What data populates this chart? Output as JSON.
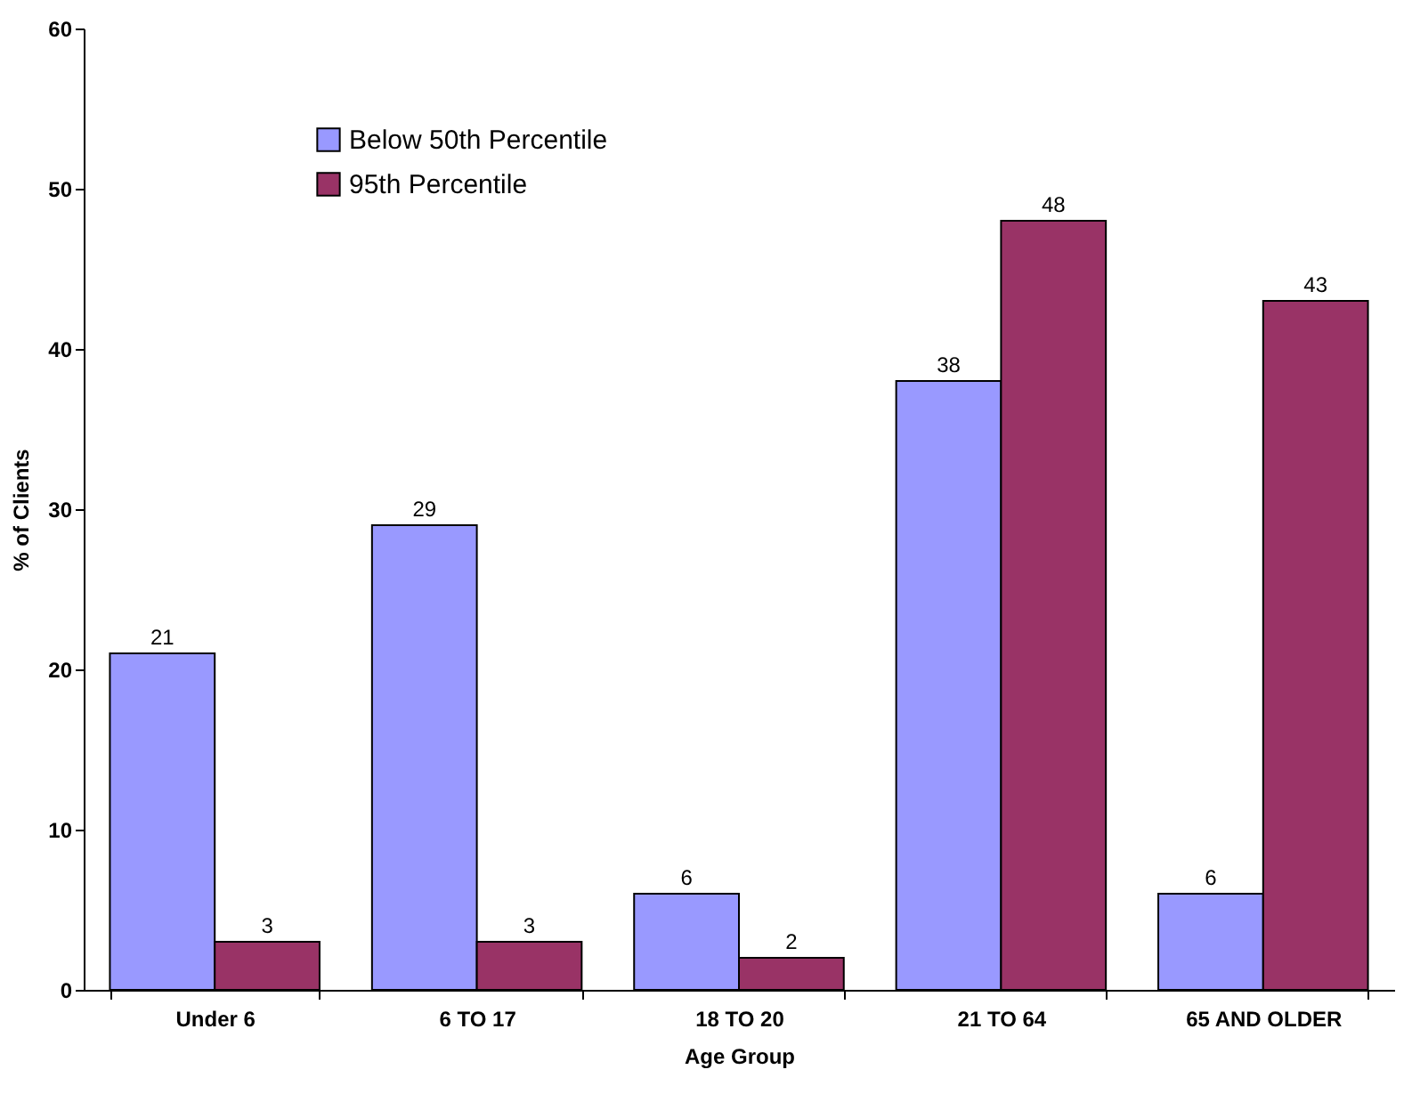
{
  "chart_data": {
    "type": "bar",
    "xlabel": "Age Group",
    "ylabel": "% of Clients",
    "categories": [
      "Under 6",
      "6 TO 17",
      "18 TO 20",
      "21 TO 64",
      "65 AND OLDER"
    ],
    "series": [
      {
        "name": "Below 50th Percentile",
        "color": "#9999ff",
        "values": [
          21,
          29,
          6,
          38,
          6
        ]
      },
      {
        "name": "95th Percentile",
        "color": "#993366",
        "values": [
          3,
          3,
          2,
          48,
          43
        ]
      }
    ],
    "ylim": [
      0,
      60
    ],
    "yticks": [
      0,
      10,
      20,
      30,
      40,
      50,
      60
    ],
    "grid": false,
    "legend": "top left",
    "data_labels": true
  }
}
